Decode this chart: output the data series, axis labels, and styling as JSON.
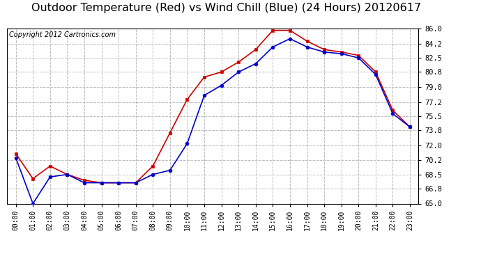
{
  "title": "Outdoor Temperature (Red) vs Wind Chill (Blue) (24 Hours) 20120617",
  "copyright": "Copyright 2012 Cartronics.com",
  "hours": [
    "00:00",
    "01:00",
    "02:00",
    "03:00",
    "04:00",
    "05:00",
    "06:00",
    "07:00",
    "08:00",
    "09:00",
    "10:00",
    "11:00",
    "12:00",
    "13:00",
    "14:00",
    "15:00",
    "16:00",
    "17:00",
    "18:00",
    "19:00",
    "20:00",
    "21:00",
    "22:00",
    "23:00"
  ],
  "temp_red": [
    71.0,
    68.0,
    69.5,
    68.5,
    67.8,
    67.5,
    67.5,
    67.5,
    69.5,
    73.5,
    77.5,
    80.2,
    80.8,
    82.0,
    83.5,
    85.8,
    85.8,
    84.5,
    83.5,
    83.2,
    82.8,
    80.8,
    76.2,
    74.2
  ],
  "wind_chill_blue": [
    70.5,
    65.0,
    68.2,
    68.5,
    67.5,
    67.5,
    67.5,
    67.5,
    68.5,
    69.0,
    72.2,
    78.0,
    79.2,
    80.8,
    81.8,
    83.8,
    84.8,
    83.8,
    83.2,
    83.0,
    82.5,
    80.5,
    75.8,
    74.2
  ],
  "ylim_min": 65.0,
  "ylim_max": 86.0,
  "yticks": [
    65.0,
    66.8,
    68.5,
    70.2,
    72.0,
    73.8,
    75.5,
    77.2,
    79.0,
    80.8,
    82.5,
    84.2,
    86.0
  ],
  "red_color": "#cc0000",
  "blue_color": "#0000cc",
  "bg_color": "#ffffff",
  "plot_bg": "#ffffff",
  "grid_color": "#bbbbbb",
  "title_fontsize": 11.5,
  "copyright_fontsize": 7,
  "marker_size": 3.5
}
